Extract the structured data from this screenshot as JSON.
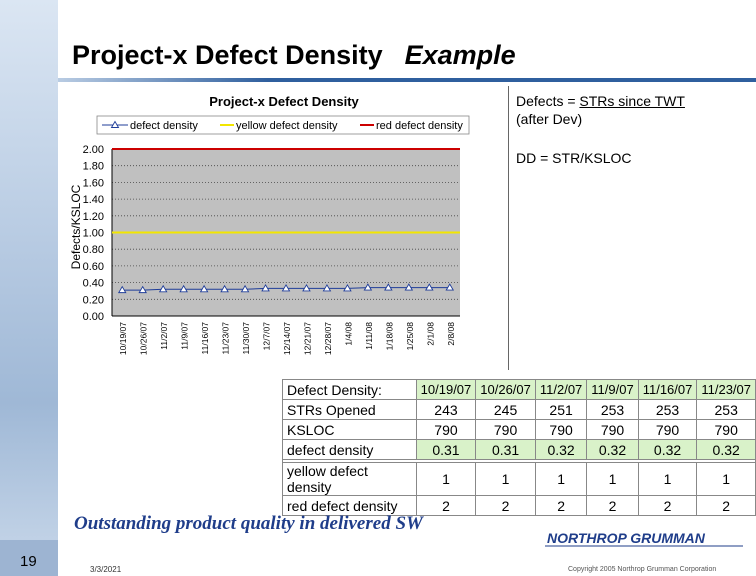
{
  "slide": {
    "title": "Project-x Defect Density",
    "subtitle": "Example",
    "note_prefix": "Defects = ",
    "note_underlined": "STRs since TWT",
    "note_suffix": "(after Dev)",
    "formula": "DD = STR/KSLOC",
    "tagline": "Outstanding product quality in delivered SW",
    "page_number": "19",
    "date": "3/3/2021",
    "copyright": "Copyright 2005 Northrop Grumman Corporation",
    "logo_text": "NORTHROP GRUMMAN"
  },
  "colors": {
    "defect_series": "#1f3d99",
    "yellow_series": "#f2e600",
    "red_series": "#cc0000",
    "plot_bg": "#c0c0c0",
    "brand": "#1f3d8a"
  },
  "chart_data": {
    "type": "line",
    "title": "Project-x Defect Density",
    "ylabel": "Defects/KSLOC",
    "xlabel": "",
    "ylim": [
      0,
      2.0
    ],
    "y_ticks": [
      "0.00",
      "0.20",
      "0.40",
      "0.60",
      "0.80",
      "1.00",
      "1.20",
      "1.40",
      "1.60",
      "1.80",
      "2.00"
    ],
    "categories": [
      "10/19/07",
      "10/26/07",
      "11/2/07",
      "11/9/07",
      "11/16/07",
      "11/23/07",
      "11/30/07",
      "12/7/07",
      "12/14/07",
      "12/21/07",
      "12/28/07",
      "1/4/08",
      "1/11/08",
      "1/18/08",
      "1/25/08",
      "2/1/08",
      "2/8/08"
    ],
    "legend_position": "top",
    "grid": "horizontal dotted",
    "series": [
      {
        "name": "defect density",
        "values": [
          0.31,
          0.31,
          0.32,
          0.32,
          0.32,
          0.32,
          0.32,
          0.33,
          0.33,
          0.33,
          0.33,
          0.33,
          0.34,
          0.34,
          0.34,
          0.34,
          0.34
        ],
        "marker": "triangle"
      },
      {
        "name": "yellow defect density",
        "values": [
          1,
          1,
          1,
          1,
          1,
          1,
          1,
          1,
          1,
          1,
          1,
          1,
          1,
          1,
          1,
          1,
          1
        ]
      },
      {
        "name": "red defect density",
        "values": [
          2,
          2,
          2,
          2,
          2,
          2,
          2,
          2,
          2,
          2,
          2,
          2,
          2,
          2,
          2,
          2,
          2
        ]
      }
    ]
  },
  "table": {
    "header_label": "Defect Density:",
    "dates": [
      "10/19/07",
      "10/26/07",
      "11/2/07",
      "11/9/07",
      "11/16/07",
      "11/23/07"
    ],
    "rows": [
      {
        "label": "STRs Opened",
        "values": [
          "243",
          "245",
          "251",
          "253",
          "253",
          "253"
        ]
      },
      {
        "label": "KSLOC",
        "values": [
          "790",
          "790",
          "790",
          "790",
          "790",
          "790"
        ]
      },
      {
        "label": "defect density",
        "values": [
          "0.31",
          "0.31",
          "0.32",
          "0.32",
          "0.32",
          "0.32"
        ]
      },
      {
        "label": "yellow defect density",
        "values": [
          "1",
          "1",
          "1",
          "1",
          "1",
          "1"
        ]
      },
      {
        "label": "red defect density",
        "values": [
          "2",
          "2",
          "2",
          "2",
          "2",
          "2"
        ]
      }
    ]
  }
}
